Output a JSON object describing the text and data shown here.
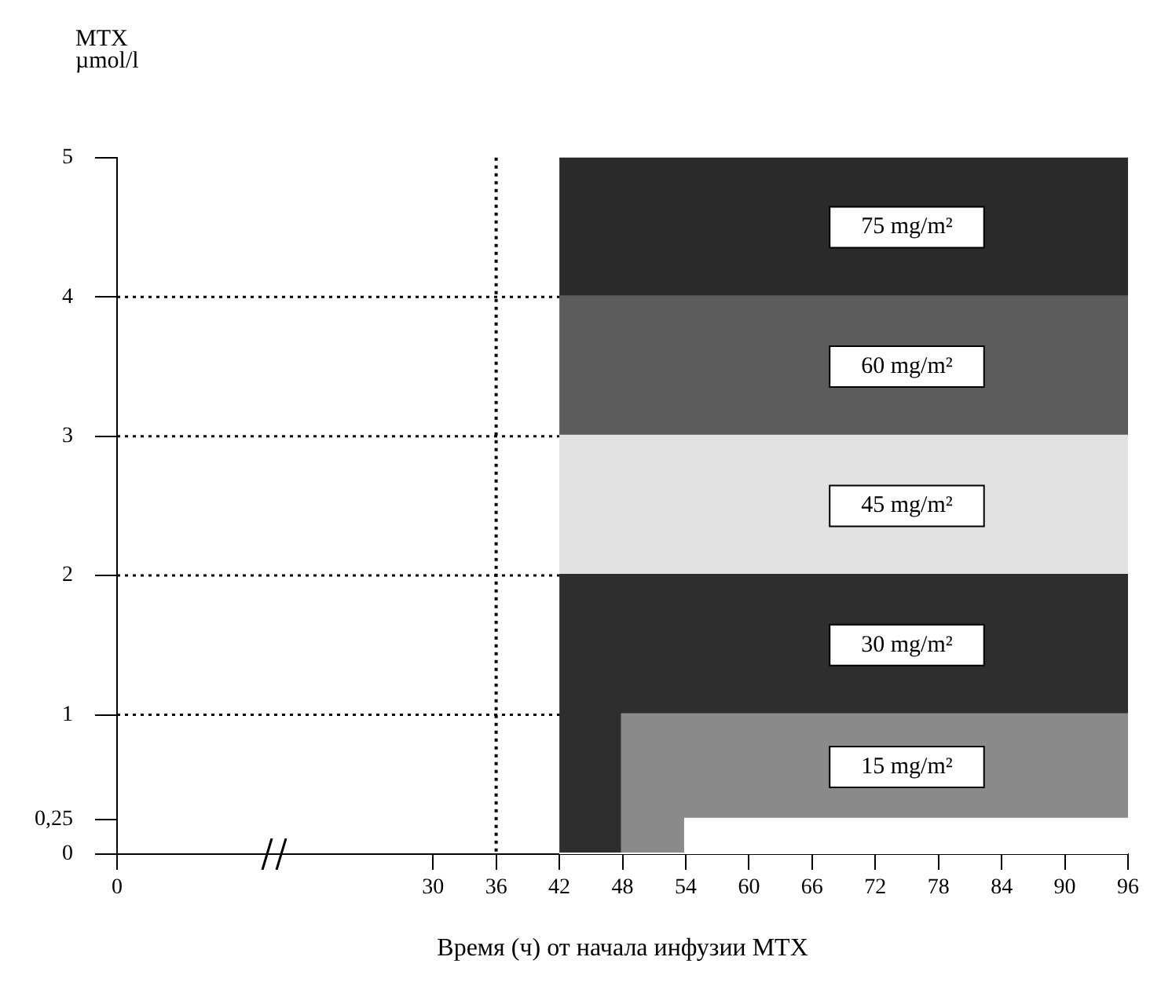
{
  "chart_data": {
    "type": "area",
    "ylabel": "MTX\nµmol/l",
    "xlabel": "Время (ч) от начала инфузии MTX",
    "xlim": [
      0,
      96
    ],
    "xticks": [
      0,
      30,
      36,
      42,
      48,
      54,
      60,
      66,
      72,
      78,
      84,
      90,
      96
    ],
    "ylim": [
      0,
      5
    ],
    "yticks": [
      0,
      {
        "value": 0.25,
        "label": "0,25"
      },
      1,
      2,
      3,
      4,
      5
    ],
    "x": [
      42,
      48,
      48,
      54,
      54,
      96
    ],
    "series": [
      {
        "color": "#ffffff",
        "values": [
          0,
          0,
          0,
          0,
          0.25,
          0.25
        ]
      },
      {
        "name": "15 mg/m²",
        "color": "#8a8a8a",
        "values": [
          0,
          0,
          1,
          1,
          1,
          1
        ]
      },
      {
        "name": "30 mg/m²",
        "color": "#2e2e2e",
        "values": [
          2,
          2,
          2,
          2,
          2,
          2
        ]
      },
      {
        "name": "45 mg/m²",
        "color": "#e2e2e2",
        "values": [
          3,
          3,
          3,
          3,
          3,
          3
        ]
      },
      {
        "name": "60 mg/m²",
        "color": "#5c5c5c",
        "values": [
          4,
          4,
          4,
          4,
          4,
          4
        ]
      },
      {
        "name": "75 mg/m²",
        "color": "#2a2a2a",
        "values": [
          5,
          5,
          5,
          5,
          5,
          5
        ]
      }
    ],
    "ref_lines": [
      {
        "axis": "x",
        "value": 36,
        "line_style": "dotted"
      },
      {
        "axis": "y",
        "value": 1,
        "line_style": "dotted"
      },
      {
        "axis": "y",
        "value": 2,
        "line_style": "dotted"
      },
      {
        "axis": "y",
        "value": 3,
        "line_style": "dotted"
      },
      {
        "axis": "y",
        "value": 4,
        "line_style": "dotted"
      }
    ]
  }
}
